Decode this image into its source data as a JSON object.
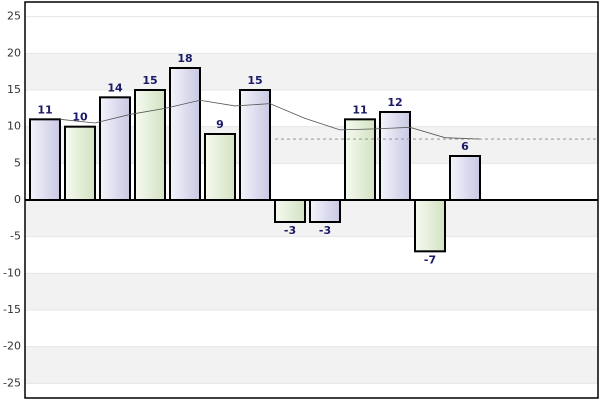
{
  "chart_data": {
    "type": "bar",
    "categories": [
      null,
      null,
      null,
      null,
      null,
      null,
      null,
      null,
      null,
      null,
      null,
      null,
      null
    ],
    "values": [
      11,
      10,
      14,
      15,
      18,
      9,
      15,
      -3,
      -3,
      11,
      12,
      -7,
      6
    ],
    "colors": [
      "#dcdcef",
      "#e3eed6"
    ],
    "trend_values": [
      11,
      10.5,
      11.67,
      12.5,
      13.6,
      12.83,
      13.14,
      11.13,
      9.56,
      9.7,
      9.91,
      8.5,
      8.31
    ],
    "mean_line": 8.31,
    "ylim": [
      -27,
      27
    ],
    "yticks": [
      -25,
      -20,
      -15,
      -10,
      -5,
      0,
      5,
      10,
      15,
      20,
      25
    ],
    "grid": true
  }
}
